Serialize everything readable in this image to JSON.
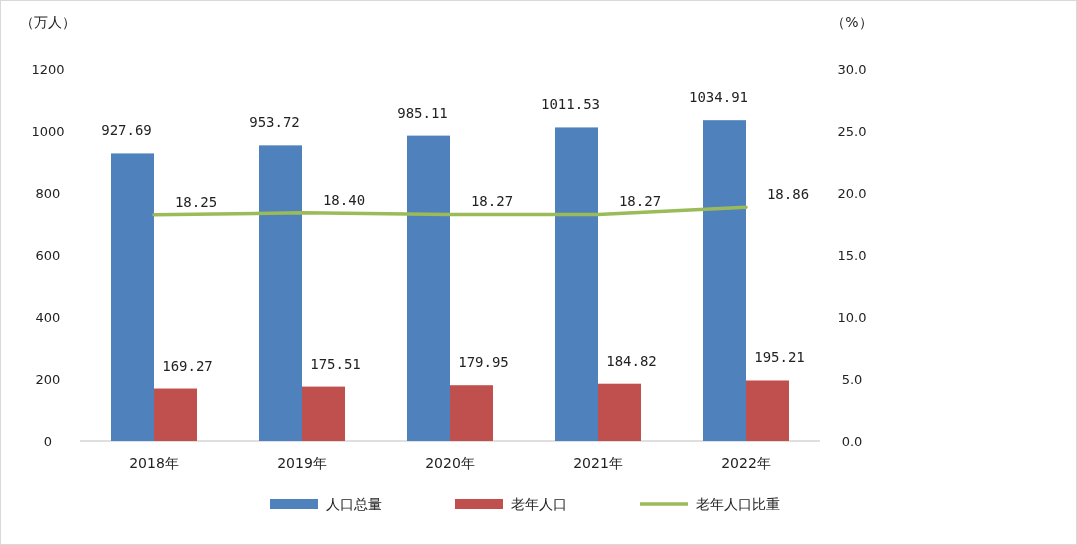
{
  "chart_data": {
    "type": "bar",
    "ylabel": "（万人）",
    "y2label": "（%）",
    "categories": [
      "2018年",
      "2019年",
      "2020年",
      "2021年",
      "2022年"
    ],
    "series": [
      {
        "name": "人口总量",
        "color": "#4f81bd",
        "values": [
          927.69,
          953.72,
          985.11,
          1011.53,
          1034.91
        ],
        "value_labels": [
          "927.69",
          "953.72",
          "985.11",
          "1011.53",
          "1034.91"
        ]
      },
      {
        "name": "老年人口",
        "color": "#c0504d",
        "values": [
          169.27,
          175.51,
          179.95,
          184.82,
          195.21
        ],
        "value_labels": [
          "169.27",
          "175.51",
          "179.95",
          "184.82",
          "195.21"
        ]
      },
      {
        "name": "老年人口比重",
        "type": "line",
        "axis": "y2",
        "color": "#9bbb59",
        "values": [
          18.25,
          18.4,
          18.27,
          18.27,
          18.86
        ],
        "value_labels": [
          "18.25",
          "18.40",
          "18.27",
          "18.27",
          "18.86"
        ]
      }
    ],
    "ylim": [
      0,
      1200
    ],
    "yticks": [
      0,
      200,
      400,
      600,
      800,
      1000,
      1200
    ],
    "y2lim": [
      0,
      30
    ],
    "y2ticks": [
      {
        "value": 0,
        "label": "0.0"
      },
      {
        "value": 5,
        "label": "5.0"
      },
      {
        "value": 10,
        "label": "10.0"
      },
      {
        "value": 15,
        "label": "15.0"
      },
      {
        "value": 20,
        "label": "20.0"
      },
      {
        "value": 25,
        "label": "25.0"
      },
      {
        "value": 30,
        "label": "30.0"
      }
    ],
    "grid": false,
    "legend": "bottom",
    "marker": "none"
  }
}
